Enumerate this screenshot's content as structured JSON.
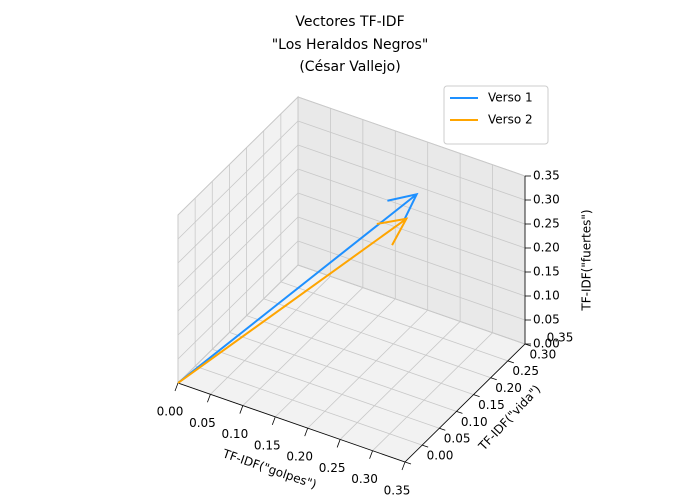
{
  "chart_data": {
    "type": "quiver3d",
    "title": [
      "Vectores TF-IDF",
      "\"Los Heraldos Negros\"",
      "(César Vallejo)"
    ],
    "xlabel": "TF-IDF(\"golpes\")",
    "ylabel": "TF-IDF(\"vida\")",
    "zlabel": "TF-IDF(\"fuertes\")",
    "xlim": [
      0,
      0.35
    ],
    "ylim": [
      0,
      0.35
    ],
    "zlim": [
      0,
      0.35
    ],
    "xticks": [
      {
        "value": 0,
        "label": "0.00"
      },
      {
        "value": 0.05,
        "label": "0.05"
      },
      {
        "value": 0.1,
        "label": "0.10"
      },
      {
        "value": 0.15,
        "label": "0.15"
      },
      {
        "value": 0.2,
        "label": "0.20"
      },
      {
        "value": 0.25,
        "label": "0.25"
      },
      {
        "value": 0.3,
        "label": "0.30"
      },
      {
        "value": 0.35,
        "label": "0.35"
      }
    ],
    "yticks": [
      {
        "value": 0,
        "label": "0.00"
      },
      {
        "value": 0.05,
        "label": "0.05"
      },
      {
        "value": 0.1,
        "label": "0.10"
      },
      {
        "value": 0.15,
        "label": "0.15"
      },
      {
        "value": 0.2,
        "label": "0.20"
      },
      {
        "value": 0.25,
        "label": "0.25"
      },
      {
        "value": 0.3,
        "label": "0.30"
      },
      {
        "value": 0.35,
        "label": "0.35"
      }
    ],
    "zticks": [
      {
        "value": 0,
        "label": "0.00"
      },
      {
        "value": 0.05,
        "label": "0.05"
      },
      {
        "value": 0.1,
        "label": "0.10"
      },
      {
        "value": 0.15,
        "label": "0.15"
      },
      {
        "value": 0.2,
        "label": "0.20"
      },
      {
        "value": 0.25,
        "label": "0.25"
      },
      {
        "value": 0.3,
        "label": "0.30"
      },
      {
        "value": 0.35,
        "label": "0.35"
      }
    ],
    "series": [
      {
        "name": "Verso 1",
        "color": "#1e90ff",
        "values": [
          0.22,
          0.28,
          0.3
        ]
      },
      {
        "name": "Verso 2",
        "color": "#ffa500",
        "values": [
          0.22,
          0.25,
          0.27
        ]
      }
    ],
    "grid": true,
    "legend": "upper right"
  }
}
